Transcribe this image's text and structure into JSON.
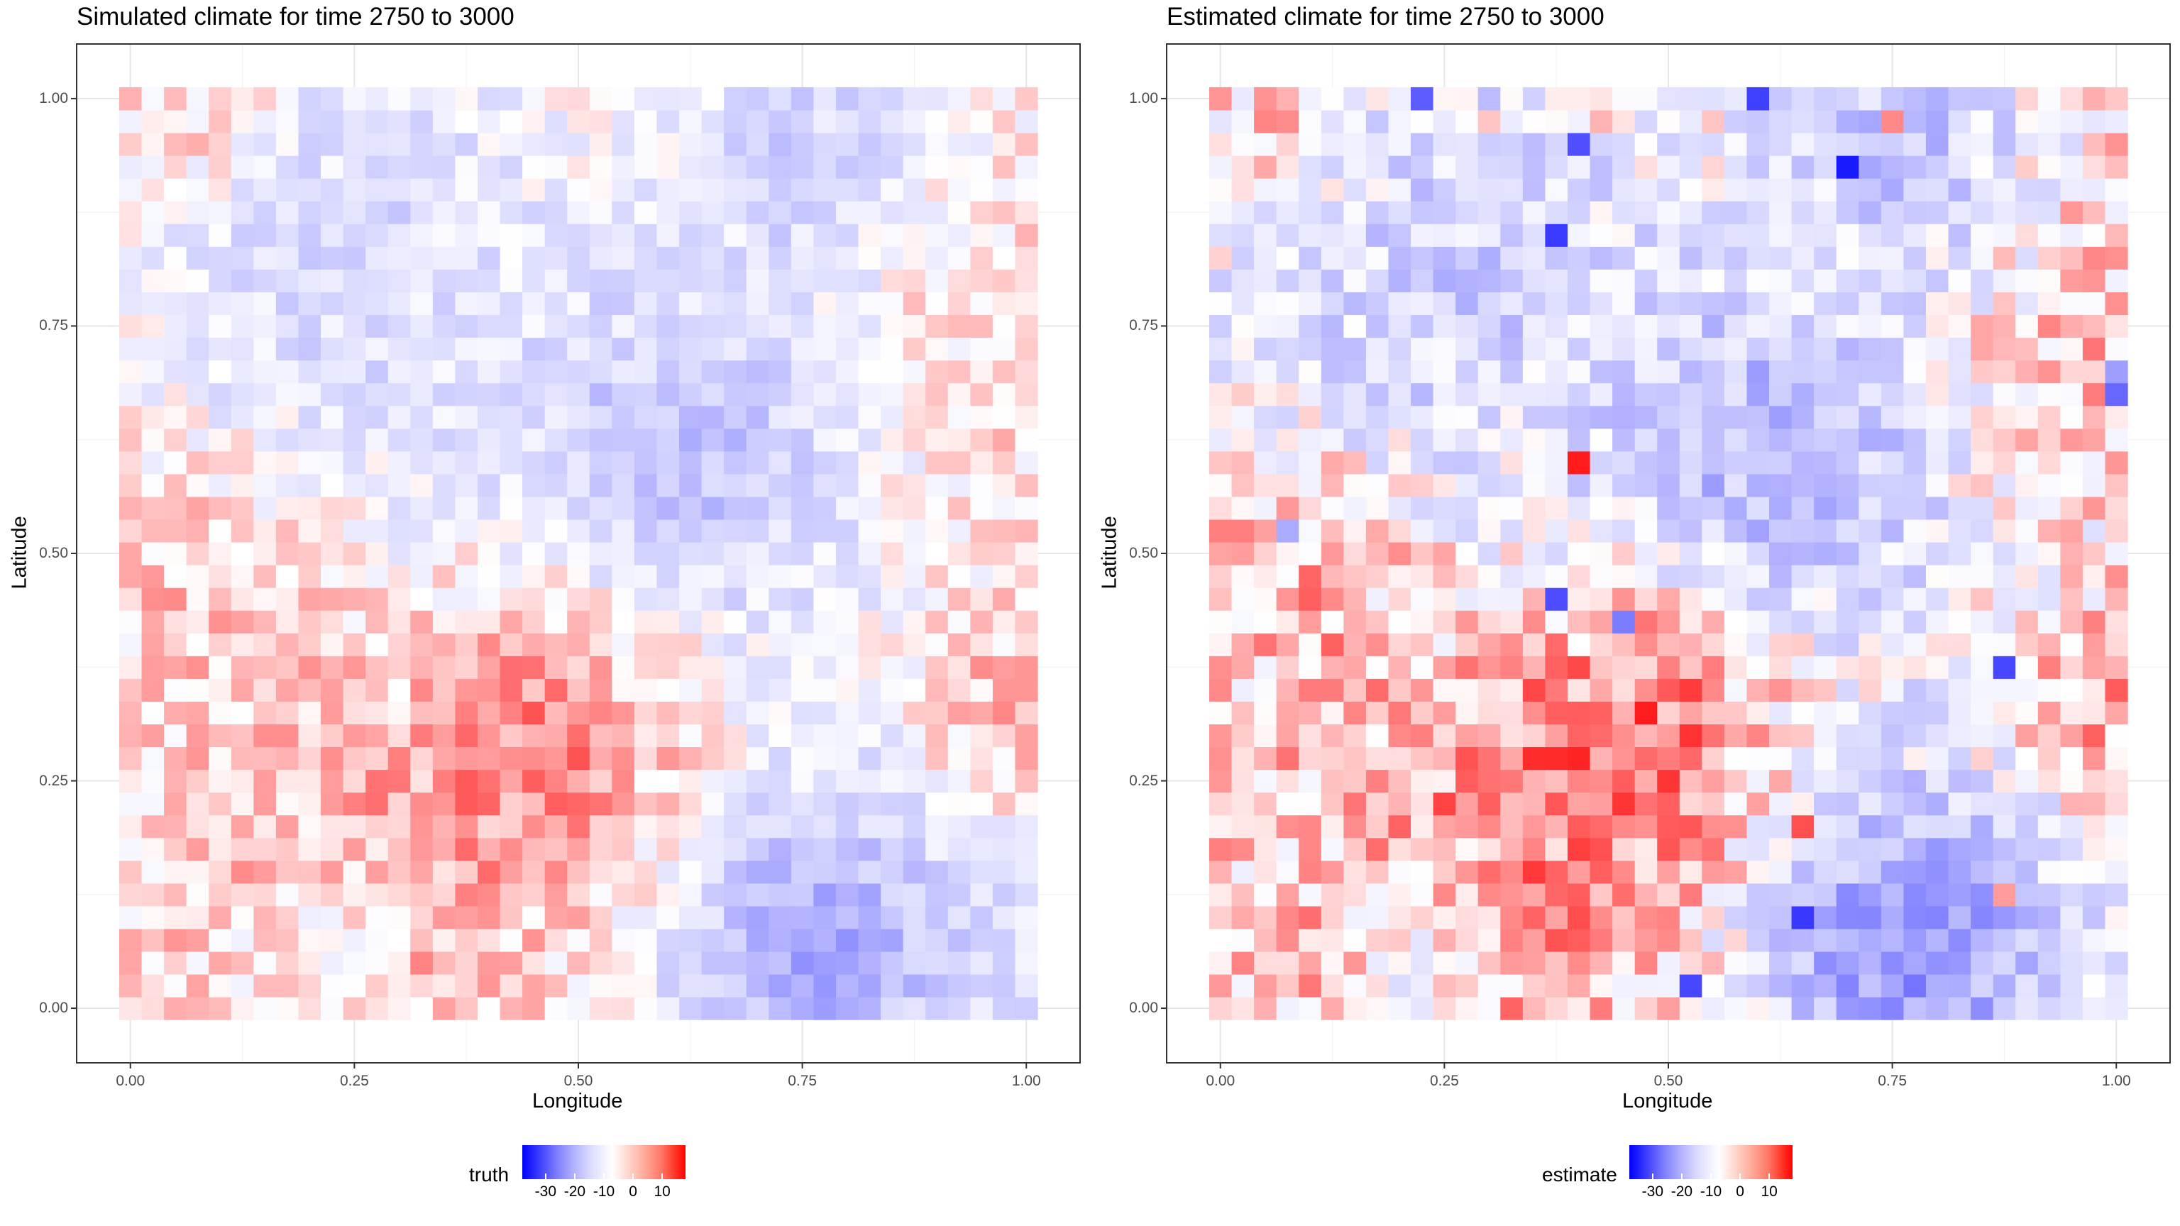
{
  "chart_data": [
    {
      "type": "heatmap",
      "title": "Simulated climate for time 2750 to 3000",
      "xlabel": "Longitude",
      "ylabel": "Latitude",
      "xlim": [
        -0.06,
        1.06
      ],
      "ylim": [
        -0.06,
        1.06
      ],
      "x_ticks": [
        "0.00",
        "0.25",
        "0.50",
        "0.75",
        "1.00"
      ],
      "y_ticks": [
        "0.00",
        "0.25",
        "0.50",
        "0.75",
        "1.00"
      ],
      "grid": true,
      "legend": {
        "title": "truth",
        "position": "bottom",
        "ticks": [
          "-30",
          "-20",
          "-10",
          "0",
          "10"
        ],
        "range": [
          -38,
          18
        ],
        "colors": [
          "#0000ff",
          "#ffffff",
          "#ff0000"
        ]
      },
      "grid_cells": [
        41,
        41
      ],
      "seed": 1
    },
    {
      "type": "heatmap",
      "title": "Estimated climate for time 2750 to 3000",
      "xlabel": "Longitude",
      "ylabel": "Latitude",
      "xlim": [
        -0.06,
        1.06
      ],
      "ylim": [
        -0.06,
        1.06
      ],
      "x_ticks": [
        "0.00",
        "0.25",
        "0.50",
        "0.75",
        "1.00"
      ],
      "y_ticks": [
        "0.00",
        "0.25",
        "0.50",
        "0.75",
        "1.00"
      ],
      "grid": true,
      "legend": {
        "title": "estimate",
        "position": "bottom",
        "ticks": [
          "-30",
          "-20",
          "-10",
          "0",
          "10"
        ],
        "range": [
          -38,
          18
        ],
        "colors": [
          "#0000ff",
          "#ffffff",
          "#ff0000"
        ]
      },
      "grid_cells": [
        41,
        41
      ],
      "seed": 2
    }
  ]
}
